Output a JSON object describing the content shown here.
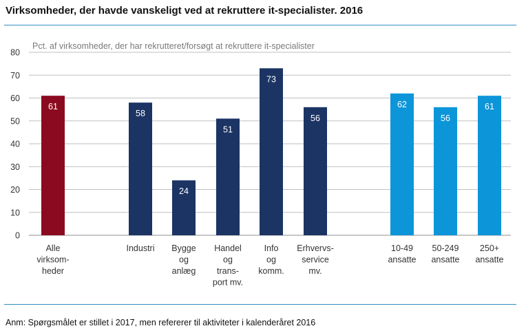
{
  "title": "Virksomheder, der havde vanskeligt ved at rekruttere it-specialister. 2016",
  "note": "Anm: Spørgsmålet er stillet i 2017, men refererer til aktiviteter i kalenderåret 2016",
  "colors": {
    "dark_red": "#8b0a1f",
    "navy": "#1b3464",
    "light_blue": "#0c96d9",
    "rule": "#2f8fc0",
    "grid": "#bfbfbf"
  },
  "chart_data": {
    "type": "bar",
    "title": "Virksomheder, der havde vanskeligt ved at rekruttere it-specialister. 2016",
    "ylabel": "Pct. af virksomheder, der har rekrutteret/forsøgt at rekruttere it-specialister",
    "xlabel": "",
    "ylim": [
      0,
      80
    ],
    "yticks": [
      0,
      10,
      20,
      30,
      40,
      50,
      60,
      70,
      80
    ],
    "grid": true,
    "legend": "none",
    "bars": [
      {
        "label": [
          "Alle",
          "virksom-",
          "heder"
        ],
        "value": 61,
        "group": "all",
        "color": "#8b0a1f"
      },
      {
        "label": [
          "Industri"
        ],
        "value": 58,
        "group": "industry",
        "color": "#1b3464"
      },
      {
        "label": [
          "Bygge",
          "og",
          "anlæg"
        ],
        "value": 24,
        "group": "industry",
        "color": "#1b3464"
      },
      {
        "label": [
          "Handel",
          "og",
          "trans-",
          "port mv."
        ],
        "value": 51,
        "group": "industry",
        "color": "#1b3464"
      },
      {
        "label": [
          "Info",
          "og",
          "komm."
        ],
        "value": 73,
        "group": "industry",
        "color": "#1b3464"
      },
      {
        "label": [
          "Erhvervs-",
          "service",
          "mv."
        ],
        "value": 56,
        "group": "industry",
        "color": "#1b3464"
      },
      {
        "label": [
          "10-49",
          "ansatte"
        ],
        "value": 62,
        "group": "size",
        "color": "#0c96d9"
      },
      {
        "label": [
          "50-249",
          "ansatte"
        ],
        "value": 56,
        "group": "size",
        "color": "#0c96d9"
      },
      {
        "label": [
          "250+",
          "ansatte"
        ],
        "value": 61,
        "group": "size",
        "color": "#0c96d9"
      }
    ]
  }
}
